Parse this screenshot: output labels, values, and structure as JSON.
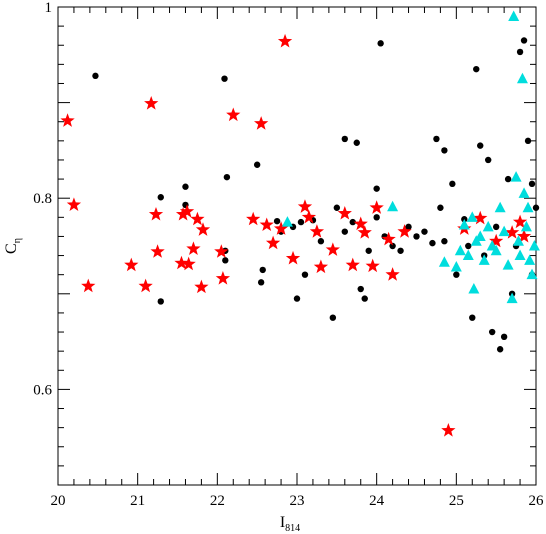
{
  "chart_data": {
    "type": "scatter",
    "xlabel": {
      "main": "I",
      "sub": "814"
    },
    "ylabel": {
      "main": "C",
      "sub": "η"
    },
    "xlim": [
      20,
      26
    ],
    "ylim": [
      0.5,
      1.0
    ],
    "x_major_ticks": [
      20,
      21,
      22,
      23,
      24,
      25,
      26
    ],
    "x_tick_labels": [
      "20",
      "21",
      "22",
      "23",
      "24",
      "25",
      "26"
    ],
    "y_major_ticks": [
      0.6,
      0.8,
      1.0
    ],
    "y_tick_labels": [
      "0.6",
      "0.8",
      "1"
    ],
    "grid": false,
    "series": [
      {
        "marker": "circle",
        "color": "#000000",
        "points": [
          [
            20.47,
            0.928
          ],
          [
            21.29,
            0.801
          ],
          [
            21.29,
            0.692
          ],
          [
            21.6,
            0.812
          ],
          [
            21.6,
            0.793
          ],
          [
            22.09,
            0.925
          ],
          [
            22.12,
            0.822
          ],
          [
            22.1,
            0.745
          ],
          [
            22.1,
            0.735
          ],
          [
            22.5,
            0.835
          ],
          [
            22.57,
            0.725
          ],
          [
            22.55,
            0.712
          ],
          [
            22.75,
            0.776
          ],
          [
            22.8,
            0.765
          ],
          [
            22.95,
            0.77
          ],
          [
            23.0,
            0.695
          ],
          [
            23.05,
            0.775
          ],
          [
            23.1,
            0.72
          ],
          [
            23.2,
            0.777
          ],
          [
            23.3,
            0.755
          ],
          [
            23.45,
            0.675
          ],
          [
            23.5,
            0.79
          ],
          [
            23.6,
            0.862
          ],
          [
            23.75,
            0.858
          ],
          [
            23.6,
            0.765
          ],
          [
            23.7,
            0.775
          ],
          [
            23.8,
            0.705
          ],
          [
            23.85,
            0.695
          ],
          [
            23.9,
            0.745
          ],
          [
            24.05,
            0.962
          ],
          [
            24.0,
            0.81
          ],
          [
            24.0,
            0.78
          ],
          [
            24.1,
            0.76
          ],
          [
            24.2,
            0.75
          ],
          [
            24.3,
            0.745
          ],
          [
            24.4,
            0.77
          ],
          [
            24.5,
            0.76
          ],
          [
            24.6,
            0.765
          ],
          [
            24.7,
            0.753
          ],
          [
            24.75,
            0.862
          ],
          [
            24.8,
            0.79
          ],
          [
            24.85,
            0.755
          ],
          [
            24.85,
            0.85
          ],
          [
            24.95,
            0.815
          ],
          [
            25.0,
            0.72
          ],
          [
            25.1,
            0.778
          ],
          [
            25.15,
            0.75
          ],
          [
            25.2,
            0.675
          ],
          [
            25.25,
            0.935
          ],
          [
            25.3,
            0.855
          ],
          [
            25.35,
            0.74
          ],
          [
            25.4,
            0.84
          ],
          [
            25.45,
            0.66
          ],
          [
            25.5,
            0.77
          ],
          [
            25.55,
            0.642
          ],
          [
            25.6,
            0.655
          ],
          [
            25.65,
            0.82
          ],
          [
            25.7,
            0.7
          ],
          [
            25.75,
            0.75
          ],
          [
            25.8,
            0.953
          ],
          [
            25.85,
            0.965
          ],
          [
            25.9,
            0.86
          ],
          [
            25.95,
            0.815
          ],
          [
            26.0,
            0.79
          ],
          [
            25.95,
            0.72
          ]
        ]
      },
      {
        "marker": "star",
        "color": "#ff0000",
        "points": [
          [
            20.12,
            0.881
          ],
          [
            20.2,
            0.793
          ],
          [
            20.38,
            0.708
          ],
          [
            20.92,
            0.73
          ],
          [
            21.1,
            0.708
          ],
          [
            21.17,
            0.899
          ],
          [
            21.23,
            0.783
          ],
          [
            21.25,
            0.744
          ],
          [
            21.55,
            0.732
          ],
          [
            21.57,
            0.783
          ],
          [
            21.62,
            0.786
          ],
          [
            21.64,
            0.731
          ],
          [
            21.7,
            0.747
          ],
          [
            21.75,
            0.778
          ],
          [
            21.82,
            0.767
          ],
          [
            21.8,
            0.707
          ],
          [
            22.05,
            0.744
          ],
          [
            22.07,
            0.716
          ],
          [
            22.2,
            0.887
          ],
          [
            22.45,
            0.778
          ],
          [
            22.55,
            0.878
          ],
          [
            22.62,
            0.772
          ],
          [
            22.7,
            0.753
          ],
          [
            22.8,
            0.768
          ],
          [
            22.85,
            0.964
          ],
          [
            22.95,
            0.737
          ],
          [
            23.1,
            0.791
          ],
          [
            23.15,
            0.78
          ],
          [
            23.25,
            0.765
          ],
          [
            23.3,
            0.728
          ],
          [
            23.45,
            0.746
          ],
          [
            23.6,
            0.784
          ],
          [
            23.7,
            0.73
          ],
          [
            23.8,
            0.773
          ],
          [
            23.85,
            0.764
          ],
          [
            23.95,
            0.729
          ],
          [
            24.0,
            0.79
          ],
          [
            24.15,
            0.757
          ],
          [
            24.2,
            0.72
          ],
          [
            24.35,
            0.765
          ],
          [
            24.9,
            0.557
          ],
          [
            25.1,
            0.768
          ],
          [
            25.3,
            0.779
          ],
          [
            25.5,
            0.755
          ],
          [
            25.7,
            0.764
          ],
          [
            25.8,
            0.775
          ],
          [
            25.85,
            0.76
          ]
        ]
      },
      {
        "marker": "triangle",
        "color": "#00dddd",
        "points": [
          [
            22.88,
            0.775
          ],
          [
            24.2,
            0.791
          ],
          [
            24.85,
            0.733
          ],
          [
            25.0,
            0.728
          ],
          [
            25.05,
            0.745
          ],
          [
            25.1,
            0.772
          ],
          [
            25.15,
            0.74
          ],
          [
            25.2,
            0.78
          ],
          [
            25.22,
            0.705
          ],
          [
            25.25,
            0.755
          ],
          [
            25.3,
            0.76
          ],
          [
            25.35,
            0.735
          ],
          [
            25.4,
            0.77
          ],
          [
            25.45,
            0.75
          ],
          [
            25.5,
            0.745
          ],
          [
            25.55,
            0.79
          ],
          [
            25.6,
            0.765
          ],
          [
            25.65,
            0.73
          ],
          [
            25.7,
            0.695
          ],
          [
            25.72,
            0.99
          ],
          [
            25.75,
            0.822
          ],
          [
            25.78,
            0.755
          ],
          [
            25.8,
            0.74
          ],
          [
            25.83,
            0.925
          ],
          [
            25.85,
            0.805
          ],
          [
            25.88,
            0.77
          ],
          [
            25.9,
            0.79
          ],
          [
            25.92,
            0.735
          ],
          [
            25.95,
            0.72
          ],
          [
            25.98,
            0.75
          ]
        ]
      }
    ]
  }
}
